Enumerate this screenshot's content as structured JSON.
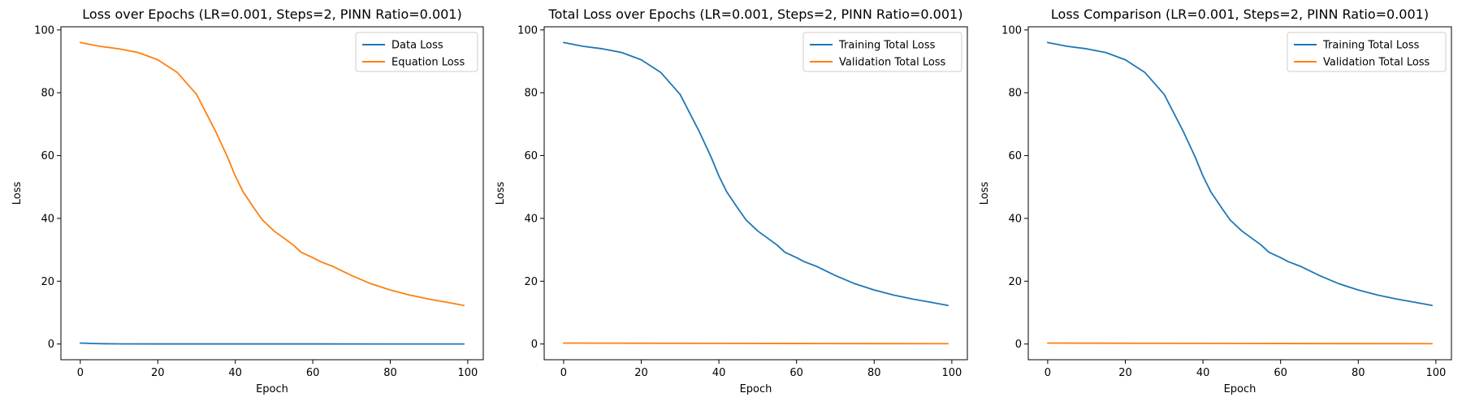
{
  "colors": {
    "blue": "#1f77b4",
    "orange": "#ff7f0e",
    "axis": "#000000",
    "background": "#ffffff",
    "legend_border": "#cccccc"
  },
  "chart_data": [
    {
      "type": "line",
      "title": "Loss over Epochs (LR=0.001, Steps=2, PINN Ratio=0.001)",
      "xlabel": "Epoch",
      "ylabel": "Loss",
      "xlim": [
        -5,
        104
      ],
      "ylim": [
        -5,
        101
      ],
      "xticks": [
        0,
        20,
        40,
        60,
        80,
        100
      ],
      "yticks": [
        0,
        20,
        40,
        60,
        80,
        100
      ],
      "grid": false,
      "legend_position": "upper right",
      "series": [
        {
          "name": "Data Loss",
          "color": "#1f77b4",
          "x": [
            0,
            5,
            10,
            20,
            40,
            60,
            80,
            99
          ],
          "y": [
            0.3,
            0.1,
            0.05,
            0.03,
            0.02,
            0.02,
            0.01,
            0.01
          ]
        },
        {
          "name": "Equation Loss",
          "color": "#ff7f0e",
          "x": [
            0,
            5,
            10,
            15,
            20,
            25,
            30,
            35,
            38,
            40,
            42,
            45,
            47,
            50,
            55,
            57,
            60,
            62,
            65,
            70,
            75,
            80,
            85,
            90,
            95,
            99
          ],
          "y": [
            96,
            94.8,
            94,
            92.8,
            90.5,
            86.5,
            79.5,
            67.5,
            59.5,
            53.5,
            48.5,
            43,
            39.5,
            36,
            31.5,
            29.2,
            27.5,
            26.2,
            24.8,
            21.8,
            19.2,
            17.2,
            15.6,
            14.3,
            13.2,
            12.3
          ]
        }
      ]
    },
    {
      "type": "line",
      "title": "Total Loss over Epochs (LR=0.001, Steps=2, PINN Ratio=0.001)",
      "xlabel": "Epoch",
      "ylabel": "Loss",
      "xlim": [
        -5,
        104
      ],
      "ylim": [
        -5,
        101
      ],
      "xticks": [
        0,
        20,
        40,
        60,
        80,
        100
      ],
      "yticks": [
        0,
        20,
        40,
        60,
        80,
        100
      ],
      "grid": false,
      "legend_position": "upper right",
      "series": [
        {
          "name": "Training Total Loss",
          "color": "#1f77b4",
          "x": [
            0,
            5,
            10,
            15,
            20,
            25,
            30,
            35,
            38,
            40,
            42,
            45,
            47,
            50,
            55,
            57,
            60,
            62,
            65,
            70,
            75,
            80,
            85,
            90,
            95,
            99
          ],
          "y": [
            96,
            94.8,
            94,
            92.8,
            90.5,
            86.5,
            79.5,
            67.5,
            59.5,
            53.5,
            48.5,
            43,
            39.5,
            36,
            31.5,
            29.2,
            27.5,
            26.2,
            24.8,
            21.8,
            19.2,
            17.2,
            15.6,
            14.3,
            13.2,
            12.3
          ]
        },
        {
          "name": "Validation Total Loss",
          "color": "#ff7f0e",
          "x": [
            0,
            20,
            40,
            60,
            80,
            99
          ],
          "y": [
            0.3,
            0.25,
            0.2,
            0.15,
            0.12,
            0.1
          ]
        }
      ]
    },
    {
      "type": "line",
      "title": "Loss Comparison (LR=0.001, Steps=2, PINN Ratio=0.001)",
      "xlabel": "Epoch",
      "ylabel": "Loss",
      "xlim": [
        -5,
        104
      ],
      "ylim": [
        -5,
        101
      ],
      "xticks": [
        0,
        20,
        40,
        60,
        80,
        100
      ],
      "yticks": [
        0,
        20,
        40,
        60,
        80,
        100
      ],
      "grid": false,
      "legend_position": "upper right",
      "series": [
        {
          "name": "Training Total Loss",
          "color": "#1f77b4",
          "x": [
            0,
            5,
            10,
            15,
            20,
            25,
            30,
            35,
            38,
            40,
            42,
            45,
            47,
            50,
            55,
            57,
            60,
            62,
            65,
            70,
            75,
            80,
            85,
            90,
            95,
            99
          ],
          "y": [
            96,
            94.8,
            94,
            92.8,
            90.5,
            86.5,
            79.5,
            67.5,
            59.5,
            53.5,
            48.5,
            43,
            39.5,
            36,
            31.5,
            29.2,
            27.5,
            26.2,
            24.8,
            21.8,
            19.2,
            17.2,
            15.6,
            14.3,
            13.2,
            12.3
          ]
        },
        {
          "name": "Validation Total Loss",
          "color": "#ff7f0e",
          "x": [
            0,
            20,
            40,
            60,
            80,
            99
          ],
          "y": [
            0.3,
            0.25,
            0.2,
            0.15,
            0.12,
            0.1
          ]
        }
      ]
    }
  ]
}
